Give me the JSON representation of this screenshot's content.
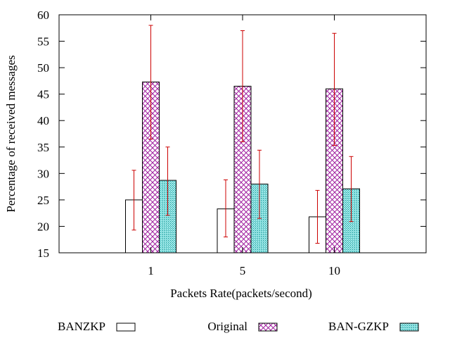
{
  "chart_data": {
    "type": "bar",
    "categories": [
      "1",
      "5",
      "10"
    ],
    "xlabel": "Packets Rate(packets/second)",
    "ylabel": "Percentage of received messages",
    "ylim": [
      15,
      60
    ],
    "yticks": [
      15,
      20,
      25,
      30,
      35,
      40,
      45,
      50,
      55,
      60
    ],
    "grid": false,
    "legend_position": "bottom",
    "error_bar_color": "#cc0000",
    "series": [
      {
        "name": "BANZKP",
        "values": [
          25.0,
          23.3,
          21.8
        ],
        "error_low": [
          19.3,
          18.0,
          16.8
        ],
        "error_high": [
          30.6,
          28.8,
          26.8
        ],
        "pattern": "empty",
        "color": "#000000"
      },
      {
        "name": "Original",
        "values": [
          47.3,
          46.5,
          46.0
        ],
        "error_low": [
          36.5,
          36.0,
          35.3
        ],
        "error_high": [
          58.0,
          57.0,
          56.5
        ],
        "pattern": "crosshatch",
        "color": "#a020a0"
      },
      {
        "name": "BAN-GZKP",
        "values": [
          28.7,
          28.0,
          27.1
        ],
        "error_low": [
          22.1,
          21.5,
          20.9
        ],
        "error_high": [
          35.0,
          34.4,
          33.2
        ],
        "pattern": "dots",
        "color": "#009a9a"
      }
    ]
  }
}
